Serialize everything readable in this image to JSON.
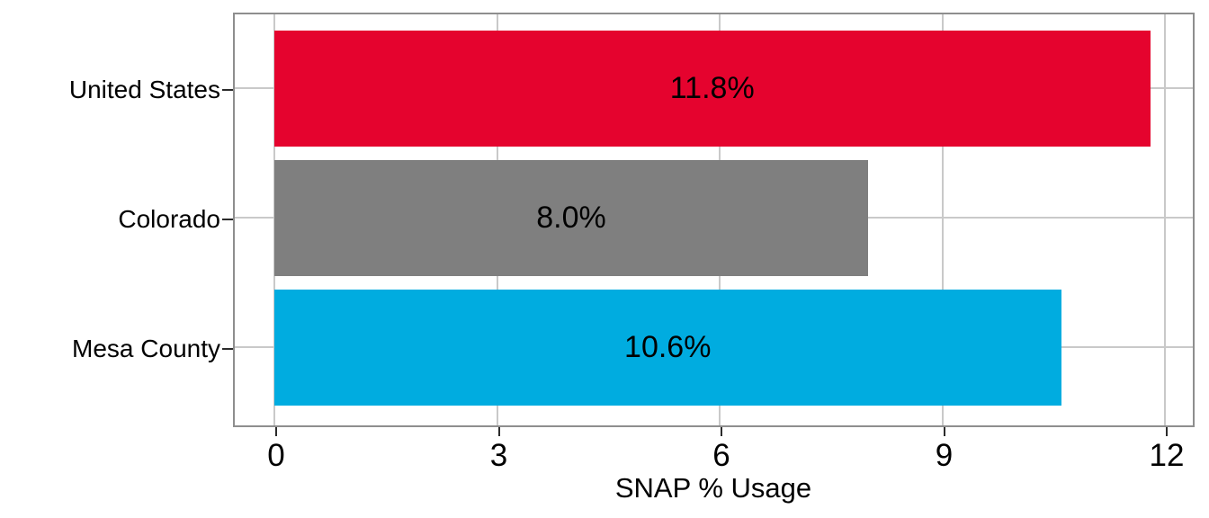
{
  "chart_data": {
    "type": "bar",
    "orientation": "horizontal",
    "title": "",
    "xlabel": "SNAP % Usage",
    "ylabel": "",
    "categories": [
      "United States",
      "Colorado",
      "Mesa County"
    ],
    "values": [
      11.8,
      8.0,
      10.6
    ],
    "bar_labels": [
      "11.8%",
      "8.0%",
      "10.6%"
    ],
    "bar_colors": [
      "#E5032E",
      "#7F7F7F",
      "#00ACE0"
    ],
    "xlim": [
      0,
      12
    ],
    "xticks": [
      "0",
      "3",
      "6",
      "9",
      "12"
    ],
    "xtick_values": [
      0,
      3,
      6,
      9,
      12
    ],
    "grid": true,
    "legend_position": "none"
  },
  "colors": {
    "grid": "#C9C9C9",
    "panel_border": "#8E8E8E",
    "tick": "#2B2B2B",
    "text": "#000000",
    "background": "#FFFFFF"
  }
}
